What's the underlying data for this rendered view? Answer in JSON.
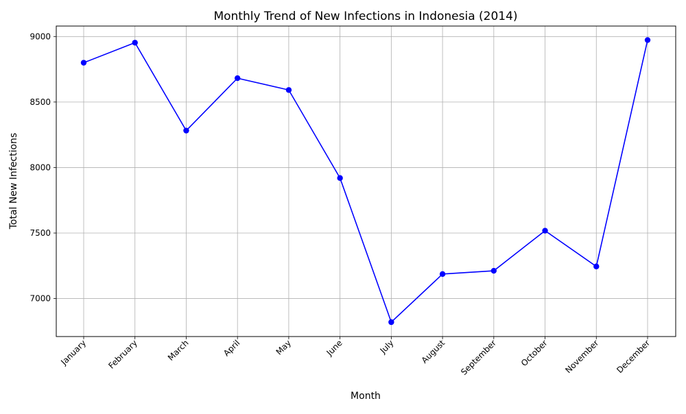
{
  "chart_data": {
    "type": "line",
    "title": "Monthly Trend of New Infections in Indonesia (2014)",
    "xlabel": "Month",
    "ylabel": "Total New Infections",
    "categories": [
      "January",
      "February",
      "March",
      "April",
      "May",
      "June",
      "July",
      "August",
      "September",
      "October",
      "November",
      "December"
    ],
    "series": [
      {
        "values": [
          8800,
          8953,
          8282,
          8682,
          8592,
          7920,
          6820,
          7187,
          7212,
          7518,
          7245,
          8973
        ],
        "color": "#0000ff",
        "marker": "circle"
      }
    ],
    "yticks": [
      7000,
      7500,
      8000,
      8500,
      9000
    ],
    "ylim": [
      6710,
      9080
    ],
    "grid": true,
    "legend": "none"
  }
}
